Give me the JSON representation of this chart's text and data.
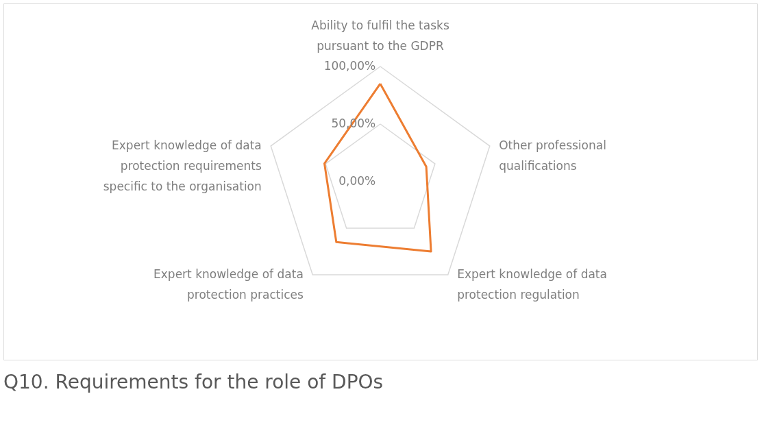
{
  "chart_data": {
    "type": "radar",
    "title": "Q10. Requirements for the role of DPOs",
    "categories": [
      "Ability to fulfil the tasks pursuant to the GDPR",
      "Other professional qualifications",
      "Expert knowledge of data protection regulation",
      "Expert knowledge of data protection practices",
      "Expert knowledge of data protection requirements specific to the organisation"
    ],
    "series": [
      {
        "color": "#ed7d31",
        "values": [
          85,
          42,
          75,
          65,
          51
        ]
      }
    ],
    "ylim": [
      0,
      100
    ],
    "yticks": [
      {
        "value": 0,
        "label": "0,00%"
      },
      {
        "value": 50,
        "label": "50,00%"
      },
      {
        "value": 100,
        "label": "100,00%"
      }
    ],
    "grid": true,
    "marker": "none",
    "line_style": "solid"
  }
}
